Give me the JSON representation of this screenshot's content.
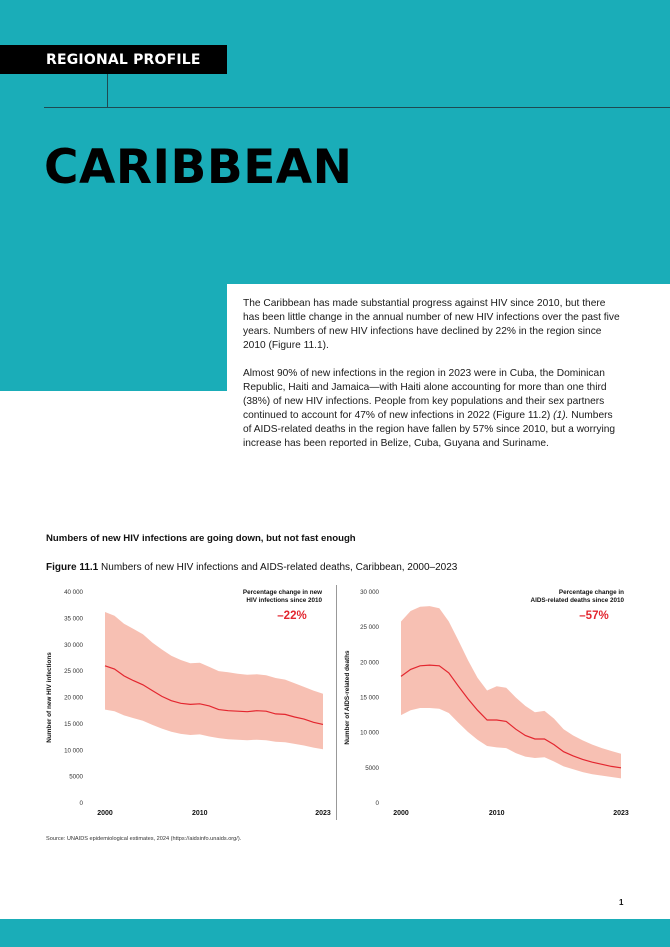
{
  "header": {
    "label": "REGIONAL PROFILE",
    "title": "CARIBBEAN"
  },
  "intro": {
    "p1": "The Caribbean has made substantial progress against HIV since 2010, but there has been little change in the annual number of new HIV infections over the past five years. Numbers of new HIV infections have declined by 22% in the region since 2010 (Figure 11.1).",
    "p2_a": "Almost 90% of new infections in the region in 2023 were in Cuba, the Dominican Republic, Haiti and Jamaica—with Haiti alone accounting for more than one third (38%) of new HIV infections. People from key populations and their sex partners continued to account for 47% of new infections in 2022 (Figure 11.2) ",
    "p2_ref": "(1).",
    "p2_b": " Numbers of AIDS-related deaths in the region have fallen by 57% since 2010, but a worrying increase has been reported in Belize, Cuba, Guyana and Suriname."
  },
  "section_heading": "Numbers of new HIV infections are going down, but not fast enough",
  "figure": {
    "number": "Figure 11.1",
    "caption": "Numbers of new HIV infections and AIDS-related deaths, Caribbean, 2000–2023"
  },
  "colors": {
    "teal": "#1aadb8",
    "line": "#e3262f",
    "band": "#f7c0b3",
    "accent_text": "#e3262f"
  },
  "chart_data": [
    {
      "type": "line",
      "ylabel": "Number of new HIV infections",
      "ylim": [
        0,
        40000
      ],
      "yticks": [
        "0",
        "5000",
        "10 000",
        "15 000",
        "20 000",
        "25 000",
        "30 000",
        "35 000",
        "40 000"
      ],
      "xticks": [
        "2000",
        "2010",
        "2023"
      ],
      "annotation_line1": "Percentage change in new",
      "annotation_line2": "HIV infections since 2010",
      "annotation_value": "–22%",
      "x": [
        2000,
        2001,
        2002,
        2003,
        2004,
        2005,
        2006,
        2007,
        2008,
        2009,
        2010,
        2011,
        2012,
        2013,
        2014,
        2015,
        2016,
        2017,
        2018,
        2019,
        2020,
        2021,
        2022,
        2023
      ],
      "series": [
        {
          "role": "estimate",
          "values": [
            26000,
            25400,
            24100,
            23200,
            22400,
            21300,
            20200,
            19400,
            18900,
            18700,
            18800,
            18400,
            17700,
            17500,
            17400,
            17300,
            17500,
            17400,
            16900,
            16800,
            16300,
            15900,
            15300,
            14900
          ]
        },
        {
          "role": "upper",
          "values": [
            36200,
            35500,
            34000,
            33000,
            32000,
            30400,
            29100,
            27900,
            27100,
            26500,
            26600,
            25800,
            25000,
            24800,
            24500,
            24300,
            24400,
            24200,
            23700,
            23400,
            22700,
            22000,
            21300,
            20700
          ]
        },
        {
          "role": "lower",
          "values": [
            17700,
            17400,
            16600,
            16100,
            15600,
            14800,
            14100,
            13500,
            13100,
            12900,
            13000,
            12600,
            12300,
            12100,
            12000,
            11900,
            12000,
            11900,
            11600,
            11500,
            11200,
            10900,
            10500,
            10200
          ]
        }
      ]
    },
    {
      "type": "line",
      "ylabel": "Number of AIDS-related deaths",
      "ylim": [
        0,
        30000
      ],
      "yticks": [
        "0",
        "5000",
        "10 000",
        "15 000",
        "20 000",
        "25 000",
        "30 000"
      ],
      "xticks": [
        "2000",
        "2010",
        "2023"
      ],
      "annotation_line1": "Percentage change in",
      "annotation_line2": "AIDS-related deaths since 2010",
      "annotation_value": "–57%",
      "x": [
        2000,
        2001,
        2002,
        2003,
        2004,
        2005,
        2006,
        2007,
        2008,
        2009,
        2010,
        2011,
        2012,
        2013,
        2014,
        2015,
        2016,
        2017,
        2018,
        2019,
        2020,
        2021,
        2022,
        2023
      ],
      "series": [
        {
          "role": "estimate",
          "values": [
            18000,
            19000,
            19500,
            19600,
            19500,
            18500,
            16600,
            14800,
            13200,
            11800,
            11800,
            11600,
            10500,
            9600,
            9100,
            9100,
            8300,
            7300,
            6700,
            6200,
            5800,
            5500,
            5200,
            5000
          ]
        },
        {
          "role": "upper",
          "values": [
            25800,
            27300,
            27900,
            28000,
            27700,
            25800,
            23100,
            20300,
            17800,
            16000,
            16600,
            16400,
            15000,
            13800,
            12900,
            13100,
            12000,
            10500,
            9600,
            8900,
            8300,
            7800,
            7400,
            7000
          ]
        },
        {
          "role": "lower",
          "values": [
            12500,
            13200,
            13500,
            13500,
            13400,
            12800,
            11400,
            10100,
            9000,
            8100,
            7900,
            7800,
            7100,
            6600,
            6400,
            6500,
            5900,
            5200,
            4800,
            4400,
            4100,
            3900,
            3700,
            3500
          ]
        }
      ]
    }
  ],
  "source": "Source: UNAIDS epidemiological estimates, 2024 (https://aidsinfo.unaids.org/).",
  "page_number": "1"
}
